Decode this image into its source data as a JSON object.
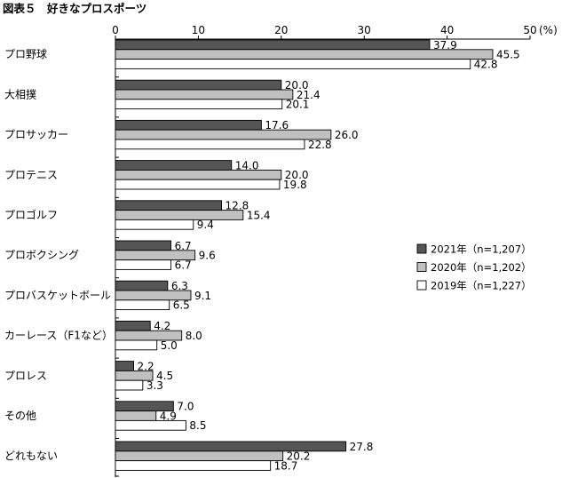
{
  "chart_data": {
    "type": "bar",
    "orientation": "horizontal",
    "title": "図表５　好きなプロスポーツ",
    "unit_label": "(%)",
    "xlim": [
      0,
      50
    ],
    "ticks": [
      0,
      10,
      20,
      30,
      40,
      50
    ],
    "grid": false,
    "legend_position": "right",
    "categories": [
      "プロ野球",
      "大相撲",
      "プロサッカー",
      "プロテニス",
      "プロゴルフ",
      "プロボクシング",
      "プロバスケットボール",
      "カーレース（F1など）",
      "プロレス",
      "その他",
      "どれもない"
    ],
    "series": [
      {
        "name": "2021年（n=1,207）",
        "color": "#555555",
        "values": [
          37.9,
          20.0,
          17.6,
          14.0,
          12.8,
          6.7,
          6.3,
          4.2,
          2.2,
          7.0,
          27.8
        ]
      },
      {
        "name": "2020年（n=1,202）",
        "color": "#c0c0c0",
        "values": [
          45.5,
          21.4,
          26.0,
          20.0,
          15.4,
          9.6,
          9.1,
          8.0,
          4.5,
          4.9,
          20.2
        ]
      },
      {
        "name": "2019年（n=1,227）",
        "color": "#ffffff",
        "values": [
          42.8,
          20.1,
          22.8,
          19.8,
          9.4,
          6.7,
          6.5,
          5.0,
          3.3,
          8.5,
          18.7
        ]
      }
    ]
  }
}
